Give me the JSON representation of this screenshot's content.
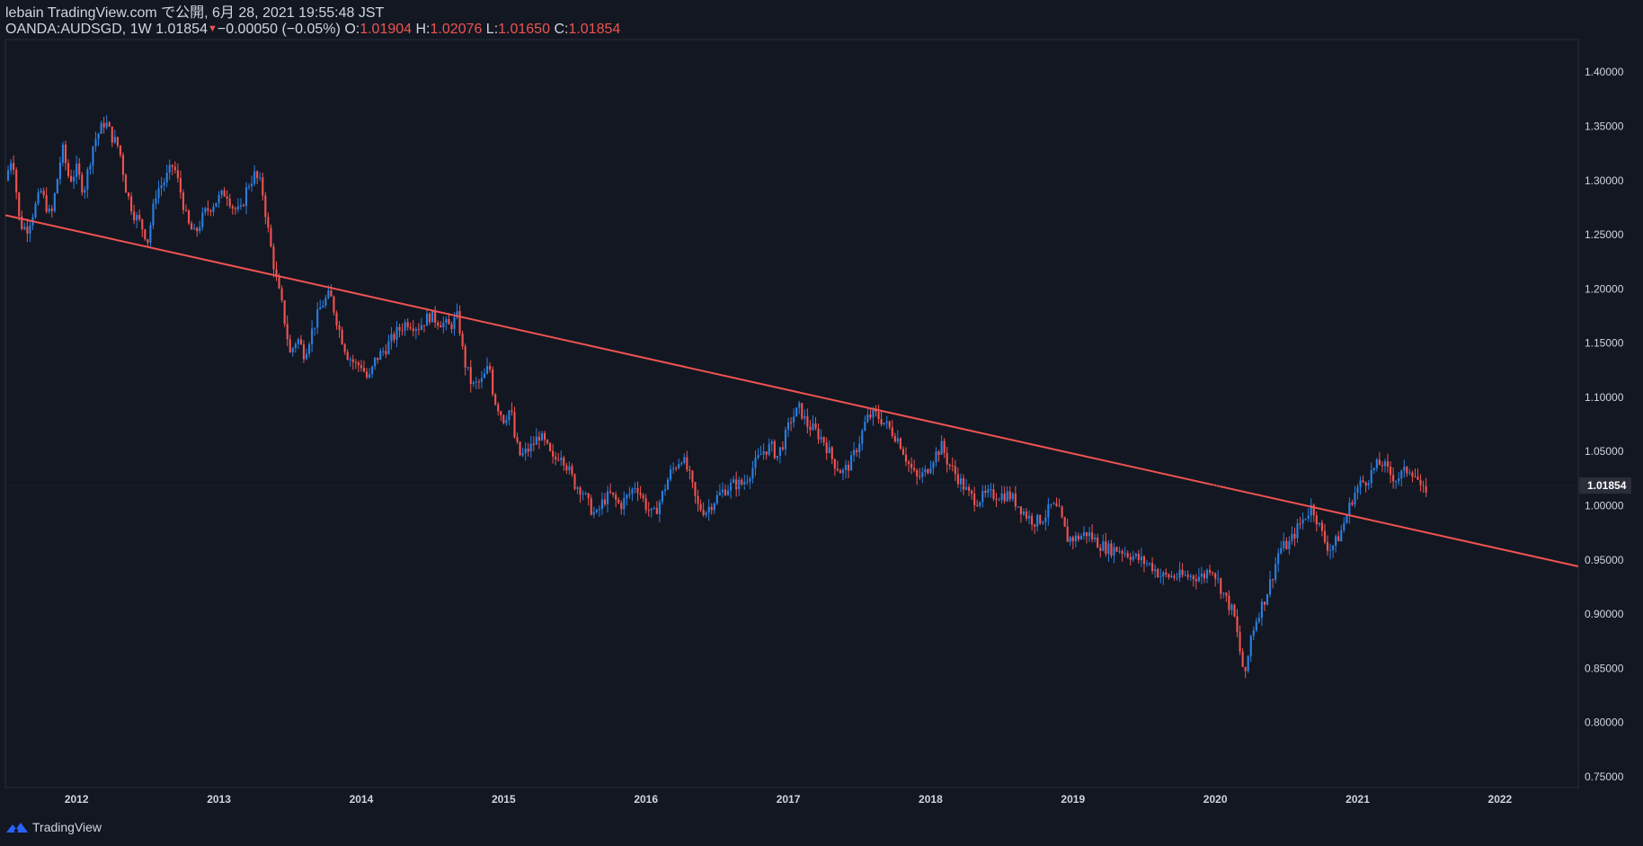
{
  "header": {
    "publish_line": "lebain TradingView.com で公開, 6月 28, 2021 19:55:48 JST",
    "symbol_interval": "OANDA:AUDSGD, 1W 1.01854",
    "change_marker": "▼",
    "change": "−0.00050 (−0.05%)",
    "open_label": "O:",
    "open": "1.01904",
    "high_label": "H:",
    "high": "1.02076",
    "low_label": "L:",
    "low": "1.01650",
    "close_label": "C:",
    "close": "1.01854"
  },
  "footer": {
    "brand": "TradingView"
  },
  "colors": {
    "background": "#131722",
    "up": "#2a7fe0",
    "down": "#ef5350",
    "trendline": "#ef5350",
    "axis_text": "#d1d4dc",
    "price_tag_bg": "#2a2e39"
  },
  "chart_data": {
    "type": "candlestick",
    "symbol": "OANDA:AUDSGD",
    "interval": "1W",
    "ylim": [
      0.74,
      1.43
    ],
    "y_ticks": [
      "1.40000",
      "1.35000",
      "1.30000",
      "1.25000",
      "1.20000",
      "1.15000",
      "1.10000",
      "1.05000",
      "1.00000",
      "0.95000",
      "0.90000",
      "0.85000",
      "0.80000",
      "0.75000"
    ],
    "x_ticks": [
      "2012",
      "2013",
      "2014",
      "2015",
      "2016",
      "2017",
      "2018",
      "2019",
      "2020",
      "2021",
      "2022"
    ],
    "last_price": "1.01854",
    "x_start_year": 2011.5,
    "x_end_year": 2022.55,
    "series_start_year": 2011.5,
    "series_end_year": 2021.49,
    "close_path": [
      [
        2011.5,
        1.3
      ],
      [
        2011.55,
        1.325
      ],
      [
        2011.6,
        1.26
      ],
      [
        2011.65,
        1.255
      ],
      [
        2011.75,
        1.29
      ],
      [
        2011.82,
        1.265
      ],
      [
        2011.9,
        1.33
      ],
      [
        2011.95,
        1.3
      ],
      [
        2012.0,
        1.31
      ],
      [
        2012.05,
        1.29
      ],
      [
        2012.12,
        1.335
      ],
      [
        2012.2,
        1.355
      ],
      [
        2012.25,
        1.34
      ],
      [
        2012.3,
        1.33
      ],
      [
        2012.35,
        1.29
      ],
      [
        2012.4,
        1.27
      ],
      [
        2012.45,
        1.26
      ],
      [
        2012.5,
        1.245
      ],
      [
        2012.56,
        1.29
      ],
      [
        2012.62,
        1.3
      ],
      [
        2012.68,
        1.315
      ],
      [
        2012.73,
        1.29
      ],
      [
        2012.78,
        1.26
      ],
      [
        2012.83,
        1.25
      ],
      [
        2012.9,
        1.27
      ],
      [
        2012.97,
        1.28
      ],
      [
        2013.05,
        1.29
      ],
      [
        2013.1,
        1.275
      ],
      [
        2013.15,
        1.27
      ],
      [
        2013.2,
        1.295
      ],
      [
        2013.25,
        1.305
      ],
      [
        2013.3,
        1.295
      ],
      [
        2013.35,
        1.25
      ],
      [
        2013.4,
        1.21
      ],
      [
        2013.45,
        1.18
      ],
      [
        2013.5,
        1.14
      ],
      [
        2013.55,
        1.155
      ],
      [
        2013.6,
        1.14
      ],
      [
        2013.65,
        1.16
      ],
      [
        2013.72,
        1.185
      ],
      [
        2013.78,
        1.195
      ],
      [
        2013.85,
        1.16
      ],
      [
        2013.9,
        1.14
      ],
      [
        2013.96,
        1.13
      ],
      [
        2014.0,
        1.13
      ],
      [
        2014.05,
        1.115
      ],
      [
        2014.1,
        1.135
      ],
      [
        2014.17,
        1.145
      ],
      [
        2014.25,
        1.16
      ],
      [
        2014.32,
        1.17
      ],
      [
        2014.4,
        1.165
      ],
      [
        2014.48,
        1.175
      ],
      [
        2014.55,
        1.17
      ],
      [
        2014.62,
        1.165
      ],
      [
        2014.68,
        1.175
      ],
      [
        2014.72,
        1.135
      ],
      [
        2014.78,
        1.11
      ],
      [
        2014.85,
        1.115
      ],
      [
        2014.9,
        1.13
      ],
      [
        2014.93,
        1.1
      ],
      [
        2015.0,
        1.08
      ],
      [
        2015.05,
        1.09
      ],
      [
        2015.08,
        1.06
      ],
      [
        2015.12,
        1.045
      ],
      [
        2015.2,
        1.055
      ],
      [
        2015.25,
        1.065
      ],
      [
        2015.3,
        1.055
      ],
      [
        2015.35,
        1.04
      ],
      [
        2015.4,
        1.05
      ],
      [
        2015.45,
        1.035
      ],
      [
        2015.5,
        1.02
      ],
      [
        2015.55,
        1.015
      ],
      [
        2015.6,
        1.0
      ],
      [
        2015.65,
        0.99
      ],
      [
        2015.7,
        1.005
      ],
      [
        2015.75,
        1.01
      ],
      [
        2015.82,
        1.0
      ],
      [
        2015.88,
        1.01
      ],
      [
        2015.93,
        1.02
      ],
      [
        2016.0,
        1.0
      ],
      [
        2016.05,
        0.99
      ],
      [
        2016.1,
        1.005
      ],
      [
        2016.17,
        1.03
      ],
      [
        2016.25,
        1.045
      ],
      [
        2016.3,
        1.03
      ],
      [
        2016.36,
        1.0
      ],
      [
        2016.42,
        0.995
      ],
      [
        2016.48,
        1.005
      ],
      [
        2016.55,
        1.015
      ],
      [
        2016.62,
        1.02
      ],
      [
        2016.68,
        1.02
      ],
      [
        2016.75,
        1.035
      ],
      [
        2016.82,
        1.05
      ],
      [
        2016.88,
        1.055
      ],
      [
        2016.92,
        1.045
      ],
      [
        2016.97,
        1.06
      ],
      [
        2017.02,
        1.08
      ],
      [
        2017.08,
        1.09
      ],
      [
        2017.13,
        1.075
      ],
      [
        2017.18,
        1.07
      ],
      [
        2017.25,
        1.06
      ],
      [
        2017.32,
        1.04
      ],
      [
        2017.38,
        1.03
      ],
      [
        2017.44,
        1.04
      ],
      [
        2017.5,
        1.06
      ],
      [
        2017.55,
        1.08
      ],
      [
        2017.6,
        1.085
      ],
      [
        2017.65,
        1.08
      ],
      [
        2017.72,
        1.07
      ],
      [
        2017.78,
        1.06
      ],
      [
        2017.84,
        1.04
      ],
      [
        2017.9,
        1.025
      ],
      [
        2017.96,
        1.03
      ],
      [
        2018.02,
        1.045
      ],
      [
        2018.08,
        1.055
      ],
      [
        2018.12,
        1.04
      ],
      [
        2018.17,
        1.03
      ],
      [
        2018.22,
        1.02
      ],
      [
        2018.27,
        1.01
      ],
      [
        2018.32,
        1.005
      ],
      [
        2018.4,
        1.01
      ],
      [
        2018.48,
        1.01
      ],
      [
        2018.55,
        1.01
      ],
      [
        2018.62,
        1.0
      ],
      [
        2018.68,
        0.99
      ],
      [
        2018.74,
        0.985
      ],
      [
        2018.8,
        0.99
      ],
      [
        2018.85,
        1.0
      ],
      [
        2018.9,
        0.995
      ],
      [
        2018.96,
        0.97
      ],
      [
        2019.02,
        0.97
      ],
      [
        2019.1,
        0.975
      ],
      [
        2019.18,
        0.965
      ],
      [
        2019.25,
        0.96
      ],
      [
        2019.32,
        0.96
      ],
      [
        2019.4,
        0.955
      ],
      [
        2019.47,
        0.95
      ],
      [
        2019.55,
        0.945
      ],
      [
        2019.62,
        0.935
      ],
      [
        2019.7,
        0.935
      ],
      [
        2019.78,
        0.935
      ],
      [
        2019.85,
        0.935
      ],
      [
        2019.92,
        0.935
      ],
      [
        2019.97,
        0.945
      ],
      [
        2020.02,
        0.93
      ],
      [
        2020.07,
        0.915
      ],
      [
        2020.13,
        0.9
      ],
      [
        2020.18,
        0.86
      ],
      [
        2020.21,
        0.84
      ],
      [
        2020.25,
        0.88
      ],
      [
        2020.3,
        0.9
      ],
      [
        2020.35,
        0.915
      ],
      [
        2020.4,
        0.935
      ],
      [
        2020.45,
        0.96
      ],
      [
        2020.52,
        0.965
      ],
      [
        2020.58,
        0.98
      ],
      [
        2020.63,
        0.99
      ],
      [
        2020.68,
        1.0
      ],
      [
        2020.72,
        0.985
      ],
      [
        2020.76,
        0.97
      ],
      [
        2020.8,
        0.96
      ],
      [
        2020.84,
        0.965
      ],
      [
        2020.88,
        0.975
      ],
      [
        2020.92,
        0.99
      ],
      [
        2020.97,
        1.01
      ],
      [
        2021.02,
        1.02
      ],
      [
        2021.07,
        1.025
      ],
      [
        2021.12,
        1.035
      ],
      [
        2021.17,
        1.04
      ],
      [
        2021.22,
        1.03
      ],
      [
        2021.27,
        1.025
      ],
      [
        2021.32,
        1.03
      ],
      [
        2021.37,
        1.035
      ],
      [
        2021.42,
        1.025
      ],
      [
        2021.45,
        1.01
      ],
      [
        2021.49,
        1.0185
      ]
    ],
    "trendline": {
      "start": [
        2011.5,
        1.268
      ],
      "end": [
        2022.55,
        0.944
      ]
    }
  }
}
